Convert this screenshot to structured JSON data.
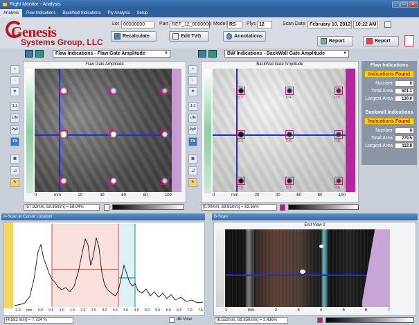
{
  "window": {
    "title": "Right Monitor - Analysis"
  },
  "menu": [
    "Analysis",
    "Flaw Indications",
    "BackWall Indications",
    "Ply Analysis",
    "Setup"
  ],
  "brand": {
    "line1": "Genesis",
    "line2": "Systems Group, LLC"
  },
  "fields": {
    "lot_label": "Lot",
    "lot": "00000000",
    "part_label": "Part",
    "part": "REF_12_0000000",
    "model_label": "Model",
    "model": "RS",
    "plys_label": "Plys",
    "plys": "12",
    "scan_date_label": "Scan Date",
    "scan_date": "February 10, 2012",
    "scan_time": "10:22 AM"
  },
  "buttons": {
    "recalculate": "Recalculate",
    "edit_tvg": "Edit TVG",
    "annotations": "Annotations",
    "report1": "Report",
    "report2": "Report"
  },
  "left_panel": {
    "select": "Flaw Indications - Flaw Gate Amplitude",
    "title": "Flaw Gate Amplitude",
    "status": "[57.92mm, 69.85mm] = 58.04%",
    "xaxis": [
      "0",
      "mm",
      "20",
      "40",
      "60",
      "80",
      "100"
    ]
  },
  "right_panel": {
    "select": "BW Indications - BackWall Gate Amplitude",
    "title": "BackWall Gate Amplitude",
    "status": "[0.00mm, 69.85mm] = 83.66%",
    "xaxis": [
      "0",
      "mm",
      "20",
      "40",
      "60",
      "80",
      "100"
    ],
    "labels": [
      "D:3",
      "D:4",
      "D:9",
      "D:1",
      "D:5",
      "D:8",
      "D:2",
      "D:7",
      "D:6"
    ]
  },
  "tools": [
    "1:1",
    "Life",
    "PpP",
    "Fit"
  ],
  "flaw": {
    "header": "Flaw Indications",
    "badge": "Indications Found",
    "number_label": "Number",
    "number": "9",
    "total_label": "Total Area",
    "total": "601.1",
    "largest_label": "Largest Area",
    "largest": "130.0"
  },
  "backwall": {
    "header": "Backwall Indications",
    "badge": "Indications Found",
    "number_label": "Number",
    "number": "9",
    "total_label": "Total Area",
    "total": "779.5",
    "largest_label": "Largest Area",
    "largest": "113.8"
  },
  "ascan": {
    "header": "A-Scan at Cursor Location",
    "status": "[4.592 mm] = 7.724 %",
    "db_view": "dB View",
    "xaxis": [
      "-1.0",
      "mm",
      "0.0",
      "0.5",
      "1.0",
      "1.5",
      "2.0",
      "2.5",
      "3.0",
      "3.5",
      "4.0",
      "4.5",
      "5.0",
      "5.5",
      "6.0",
      "6.5",
      "7.0",
      "7.5"
    ]
  },
  "bscan": {
    "header": "B-Scan",
    "title": "End View 2",
    "status": "[6.552mm, 69.850mm] = 3.436%",
    "xaxis": [
      "1",
      "mm",
      "2",
      "3",
      "4",
      "5",
      "6",
      "7"
    ]
  },
  "colors": {
    "accent": "#b9151b",
    "magenta": "#c2188a",
    "badge": "#ffd400"
  }
}
